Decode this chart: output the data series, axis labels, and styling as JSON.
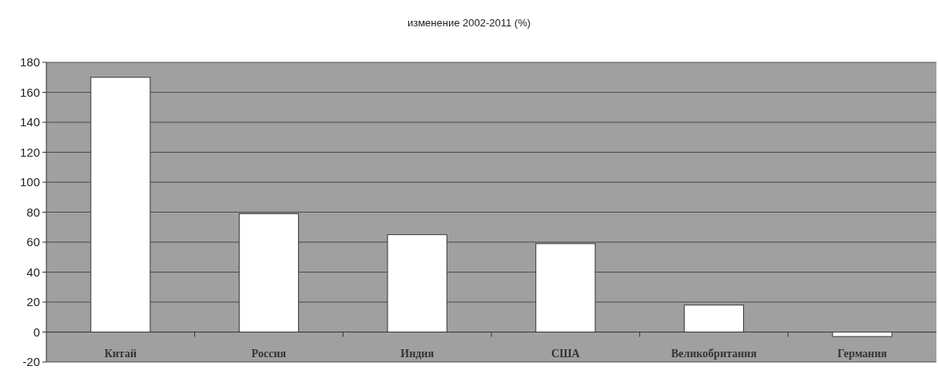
{
  "chart_data": {
    "type": "bar",
    "title": "изменение 2002-2011 (%)",
    "categories": [
      "Китай",
      "Россия",
      "Индия",
      "США",
      "Великобритания",
      "Германия"
    ],
    "values": [
      170,
      79,
      65,
      59,
      18,
      -3
    ],
    "color": "#ffffff",
    "ylim": [
      -20,
      180
    ],
    "yticks": [
      -20,
      0,
      20,
      40,
      60,
      80,
      100,
      120,
      140,
      160,
      180
    ],
    "grid": "y"
  }
}
